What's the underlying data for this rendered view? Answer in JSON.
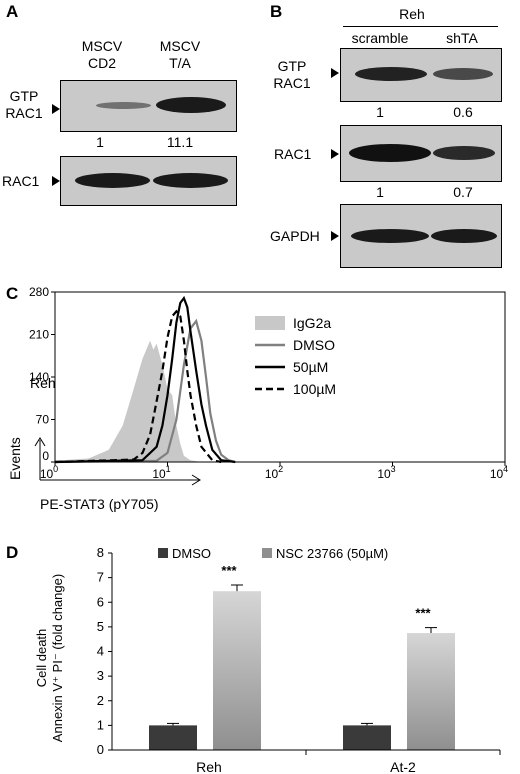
{
  "panel_a": {
    "letter": "A",
    "col_headers": [
      [
        "MSCV",
        "CD2"
      ],
      [
        "MSCV",
        "T/A"
      ]
    ],
    "row_labels": {
      "gtp_rac1": [
        "GTP",
        "RAC1"
      ],
      "rac1": "RAC1"
    },
    "quant": [
      "1",
      "11.1"
    ]
  },
  "panel_b": {
    "letter": "B",
    "cell_line": "Reh",
    "col_headers": [
      "scramble",
      "shTA"
    ],
    "row_labels": {
      "gtp_rac1": [
        "GTP",
        "RAC1"
      ],
      "rac1": "RAC1",
      "gapdh": "GAPDH"
    },
    "quant_gtp": [
      "1",
      "0.6"
    ],
    "quant_rac1": [
      "1",
      "0.7"
    ]
  },
  "panel_c": {
    "letter": "C",
    "cell_label": "Reh",
    "ylabel": "Events",
    "xlabel": "PE-STAT3 (pY705)",
    "legend": [
      "IgG2a",
      "DMSO",
      "50µM",
      "100µM"
    ],
    "colors": {
      "isotype_fill": "#c8c8c8",
      "dmso": "#808080",
      "treated": "#000000"
    }
  },
  "panel_d": {
    "letter": "D",
    "legend": [
      "DMSO",
      "NSC 23766 (50µM)"
    ],
    "ylabel_lines": [
      "Cell death",
      "Annexin V⁺ PI⁻ (fold change)"
    ],
    "significance": [
      "***",
      "***"
    ],
    "colors": {
      "dmso": "#3a3a3a",
      "nsc_top": "#d6d6d6",
      "nsc_bottom": "#8f8f8f"
    }
  },
  "chart_data": [
    {
      "type": "line",
      "panel": "C",
      "xlabel": "PE-STAT3 (pY705)",
      "ylabel": "Events",
      "x_scale": "log",
      "xlim": [
        1,
        10000
      ],
      "ylim": [
        0,
        280
      ],
      "x_ticks": [
        1,
        10,
        100,
        1000,
        10000
      ],
      "x_tick_labels": [
        [
          "10",
          "0"
        ],
        [
          "10",
          "1"
        ],
        [
          "10",
          "2"
        ],
        [
          "10",
          "3"
        ],
        [
          "10",
          "4"
        ]
      ],
      "y_ticks": [
        0,
        70,
        140,
        210,
        280
      ],
      "series": [
        {
          "name": "IgG2a",
          "style": "filled",
          "x": [
            1,
            2,
            3,
            4,
            5,
            6,
            7,
            7.5,
            8,
            9,
            10,
            11,
            12,
            13,
            14,
            16,
            20
          ],
          "y": [
            2,
            6,
            20,
            60,
            120,
            170,
            200,
            185,
            195,
            160,
            120,
            110,
            60,
            30,
            10,
            3,
            0
          ]
        },
        {
          "name": "DMSO",
          "style": "solid-gray",
          "x": [
            1,
            8,
            10,
            12,
            14,
            16,
            18,
            20,
            22,
            24,
            27,
            30,
            35,
            40
          ],
          "y": [
            0,
            2,
            15,
            70,
            160,
            220,
            232,
            200,
            140,
            80,
            35,
            12,
            3,
            0
          ]
        },
        {
          "name": "50µM",
          "style": "solid-black",
          "x": [
            1,
            6,
            8,
            9,
            10,
            11,
            12,
            13,
            14,
            15,
            16,
            18,
            20,
            22,
            25,
            30,
            40
          ],
          "y": [
            0,
            3,
            25,
            60,
            110,
            170,
            230,
            262,
            270,
            255,
            215,
            150,
            95,
            60,
            20,
            3,
            0
          ]
        },
        {
          "name": "100µM",
          "style": "dashed-black",
          "x": [
            1,
            5,
            6,
            7,
            8,
            9,
            10,
            11,
            12,
            13,
            14,
            15,
            16,
            18,
            20,
            25,
            30
          ],
          "y": [
            0,
            4,
            15,
            45,
            100,
            150,
            205,
            240,
            248,
            240,
            200,
            150,
            110,
            60,
            25,
            3,
            0
          ]
        }
      ]
    },
    {
      "type": "bar",
      "panel": "D",
      "categories": [
        "Reh",
        "At-2"
      ],
      "ylabel": "Cell death Annexin V⁺ PI⁻ (fold change)",
      "ylim": [
        0,
        8
      ],
      "y_ticks": [
        0,
        1,
        2,
        3,
        4,
        5,
        6,
        7,
        8
      ],
      "series": [
        {
          "name": "DMSO",
          "values": [
            1.0,
            1.0
          ],
          "errors": [
            0.08,
            0.08
          ]
        },
        {
          "name": "NSC 23766 (50µM)",
          "values": [
            6.45,
            4.75
          ],
          "errors": [
            0.25,
            0.22
          ]
        }
      ]
    }
  ]
}
